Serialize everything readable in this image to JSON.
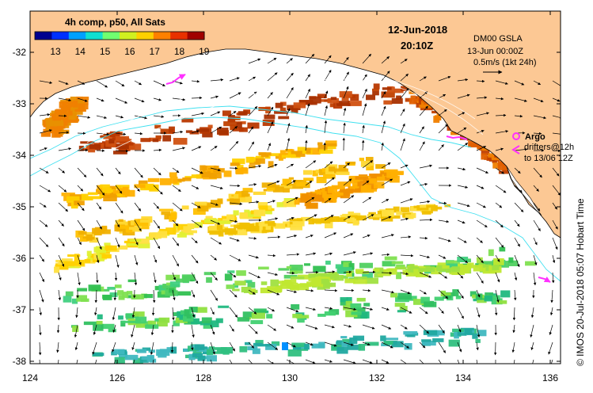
{
  "colorbar": {
    "title": "4h comp, p50, All Sats",
    "ticks": [
      "13",
      "14",
      "15",
      "16",
      "17",
      "18",
      "19"
    ],
    "colors": [
      "#00008f",
      "#0030ff",
      "#00a0ff",
      "#10e0d0",
      "#70ff70",
      "#d0f020",
      "#ffd000",
      "#ff8000",
      "#e83000",
      "#a00000"
    ]
  },
  "header": {
    "date": "12-Jun-2018",
    "time": "20:10Z"
  },
  "info": {
    "product": "DM00 GSLA",
    "valid": "13-Jun 00:00Z",
    "scale": "0.5m/s (1kt 24h)"
  },
  "legend": {
    "argo": "Argo",
    "drifters": "drifters@12h",
    "drifters_to": "to 13/06 12Z"
  },
  "axes": {
    "x_ticks": [
      "124",
      "126",
      "128",
      "130",
      "132",
      "134",
      "136"
    ],
    "y_ticks": [
      "-32",
      "-33",
      "-34",
      "-35",
      "-36",
      "-37",
      "-38"
    ]
  },
  "credit": "© IMOS 20-Jul-2018 05:07 Hobart Time",
  "colors": {
    "land": "#fcc894",
    "sea": "#ffffff",
    "shelf_line": "#40e0f0",
    "drifter": "#ff30ff",
    "arrow": "#000000"
  }
}
